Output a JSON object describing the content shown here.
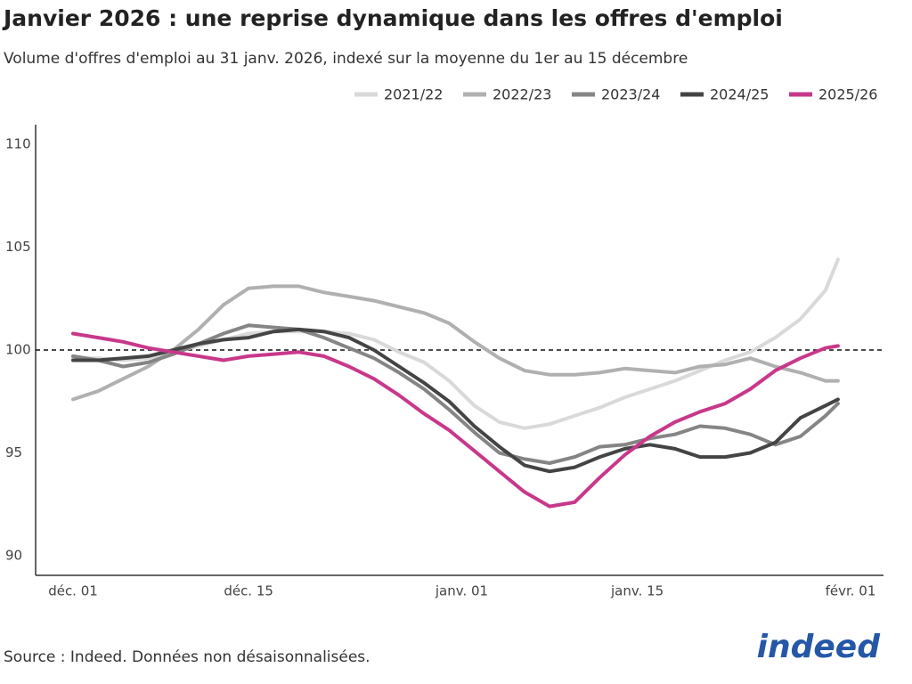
{
  "chart_data": {
    "type": "line",
    "title": "Janvier 2026 : une reprise dynamique dans les offres d'emploi",
    "subtitle": "Volume d'offres d'emploi au 31 janv. 2026, indexé sur la moyenne du 1er au 15 décembre",
    "source": "Source : Indeed. Données non désaisonnalisées.",
    "logo": "indeed",
    "x": [
      0,
      2,
      4,
      6,
      8,
      10,
      12,
      14,
      16,
      18,
      20,
      22,
      24,
      26,
      28,
      30,
      32,
      34,
      36,
      38,
      40,
      42,
      44,
      46,
      48,
      50,
      52,
      54,
      56,
      58,
      60,
      61
    ],
    "xlim": [
      0,
      62
    ],
    "xticks": [
      {
        "value": 0,
        "label": "déc. 01"
      },
      {
        "value": 14,
        "label": "déc. 15"
      },
      {
        "value": 31,
        "label": "janv. 01"
      },
      {
        "value": 45,
        "label": "janv. 15"
      },
      {
        "value": 62,
        "label": "févr. 01"
      }
    ],
    "ylim": [
      89,
      111
    ],
    "yticks": [
      90,
      95,
      100,
      105,
      110
    ],
    "reference_line": 100,
    "series": [
      {
        "name": "2021/22",
        "color": "#d9d9d9",
        "values": [
          99.6,
          99.6,
          99.5,
          99.6,
          99.9,
          100.2,
          100.5,
          100.8,
          100.9,
          100.9,
          100.9,
          100.8,
          100.5,
          99.9,
          99.4,
          98.5,
          97.3,
          96.5,
          96.2,
          96.4,
          96.8,
          97.2,
          97.7,
          98.1,
          98.5,
          99.0,
          99.5,
          99.9,
          100.6,
          101.5,
          102.9,
          104.4
        ]
      },
      {
        "name": "2022/23",
        "color": "#b0b0b0",
        "values": [
          97.6,
          98.0,
          98.6,
          99.2,
          100.0,
          101.0,
          102.2,
          103.0,
          103.1,
          103.1,
          102.8,
          102.6,
          102.4,
          102.1,
          101.8,
          101.3,
          100.4,
          99.6,
          99.0,
          98.8,
          98.8,
          98.9,
          99.1,
          99.0,
          98.9,
          99.2,
          99.3,
          99.6,
          99.2,
          98.9,
          98.5,
          98.5
        ]
      },
      {
        "name": "2023/24",
        "color": "#858585",
        "values": [
          99.7,
          99.5,
          99.2,
          99.4,
          99.8,
          100.3,
          100.8,
          101.2,
          101.1,
          101.0,
          100.6,
          100.1,
          99.6,
          98.9,
          98.1,
          97.1,
          96.0,
          95.0,
          94.7,
          94.5,
          94.8,
          95.3,
          95.4,
          95.7,
          95.9,
          96.3,
          96.2,
          95.9,
          95.4,
          95.8,
          96.8,
          97.4
        ]
      },
      {
        "name": "2024/25",
        "color": "#444444",
        "values": [
          99.5,
          99.5,
          99.6,
          99.7,
          100.0,
          100.3,
          100.5,
          100.6,
          100.9,
          101.0,
          100.9,
          100.6,
          100.0,
          99.2,
          98.4,
          97.5,
          96.3,
          95.3,
          94.4,
          94.1,
          94.3,
          94.8,
          95.2,
          95.4,
          95.2,
          94.8,
          94.8,
          95.0,
          95.5,
          96.7,
          97.3,
          97.6
        ]
      },
      {
        "name": "2025/26",
        "color": "#c8388a",
        "values": [
          100.8,
          100.6,
          100.4,
          100.1,
          99.9,
          99.7,
          99.5,
          99.7,
          99.8,
          99.9,
          99.7,
          99.2,
          98.6,
          97.8,
          96.9,
          96.1,
          95.1,
          94.1,
          93.1,
          92.4,
          92.6,
          93.8,
          94.9,
          95.8,
          96.5,
          97.0,
          97.4,
          98.1,
          99.0,
          99.6,
          100.1,
          100.2
        ]
      }
    ]
  }
}
